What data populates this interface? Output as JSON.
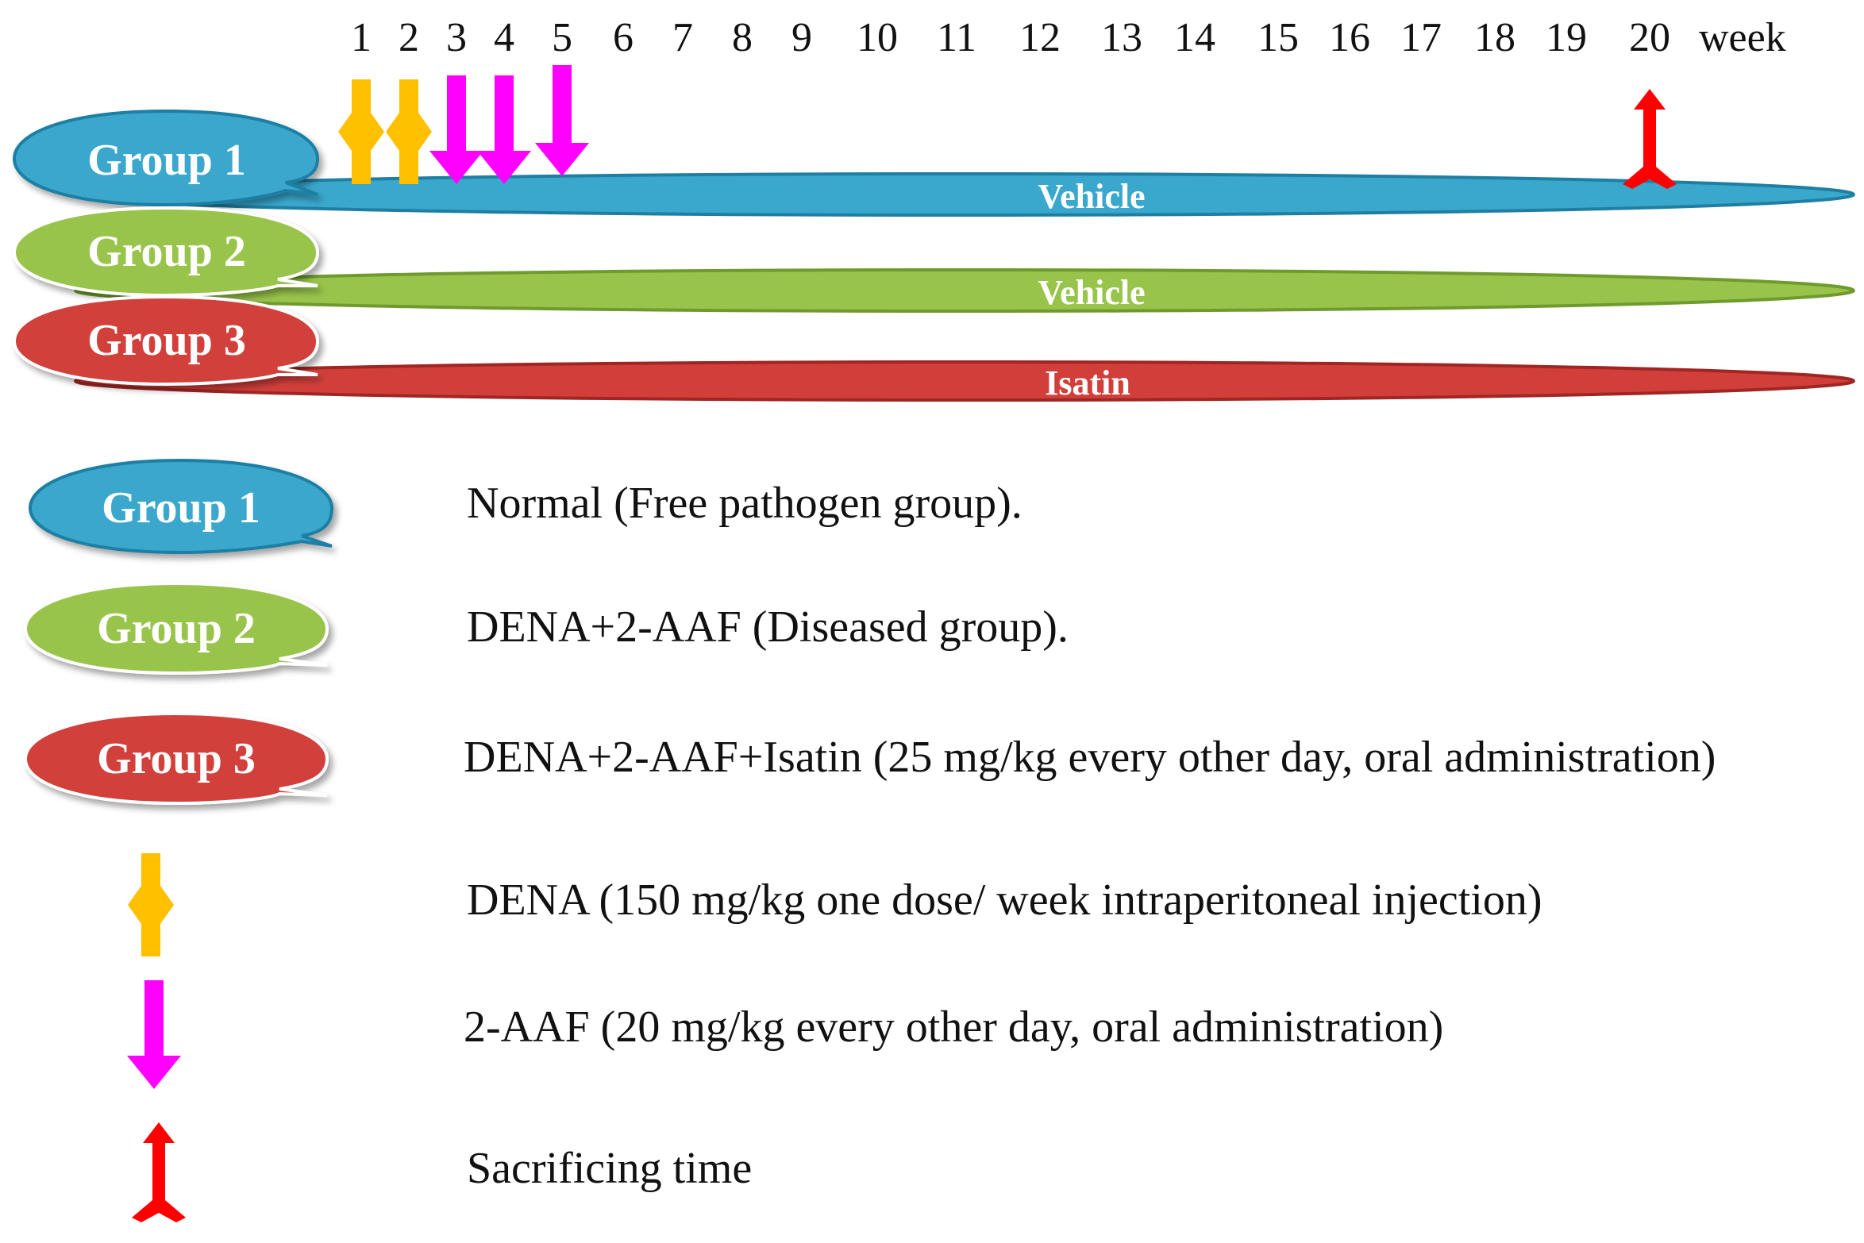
{
  "timeline": {
    "weeks": [
      "1",
      "2",
      "3",
      "4",
      "5",
      "6",
      "7",
      "8",
      "9",
      "10",
      "11",
      "12",
      "13",
      "14",
      "15",
      "16",
      "17",
      "18",
      "19",
      "20"
    ],
    "unit_label": "week"
  },
  "groups": [
    {
      "label": "Group 1",
      "bar_label": "Vehicle",
      "color": "#3aa7cd"
    },
    {
      "label": "Group 2",
      "bar_label": "Vehicle",
      "color": "#99c44b"
    },
    {
      "label": "Group 3",
      "bar_label": "Isatin",
      "color": "#d23f3b"
    }
  ],
  "markers": {
    "dena_weeks": [
      1,
      2
    ],
    "aaf_weeks": [
      3,
      4,
      5
    ],
    "sacrifice_week": 20,
    "dena_color": "#ffc000",
    "aaf_color": "#ff00ff",
    "sacrifice_color": "#ff0000"
  },
  "legend": {
    "group1": "Normal (Free pathogen group).",
    "group2": "DENA+2-AAF (Diseased group).",
    "group3": "DENA+2-AAF+Isatin (25 mg/kg every other day, oral administration)",
    "dena": "DENA (150 mg/kg one dose/ week intraperitoneal injection)",
    "aaf": "2-AAF (20 mg/kg every other day, oral administration)",
    "sacrifice": "Sacrificing time"
  }
}
